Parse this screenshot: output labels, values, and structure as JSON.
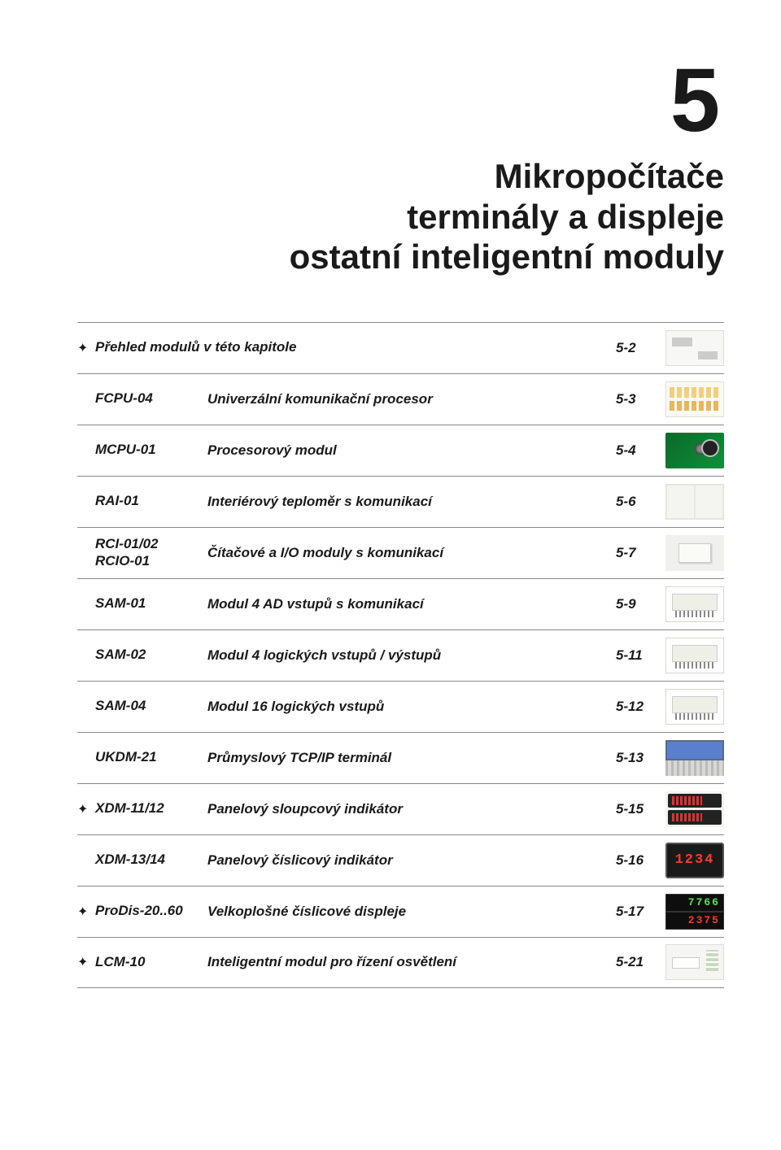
{
  "chapter_number": "5",
  "subtitle_line1": "Mikropočítače",
  "subtitle_line2": "terminály a displeje",
  "subtitle_line3": "ostatní inteligentní moduly",
  "heading_row": {
    "has_star": true,
    "model": "Přehled modulů v této kapitole",
    "description": "",
    "page": "5-2",
    "thumb_type": "diagram"
  },
  "rows": [
    {
      "has_star": false,
      "model": "FCPU-04",
      "description": "Univerzální komunikační procesor",
      "page": "5-3",
      "thumb_type": "chart"
    },
    {
      "has_star": false,
      "model": "MCPU-01",
      "description": "Procesorový modul",
      "page": "5-4",
      "thumb_type": "pcb"
    },
    {
      "has_star": false,
      "model": "RAI-01",
      "description": "Interiérový teploměr s komunikací",
      "page": "5-6",
      "thumb_type": "switch"
    },
    {
      "has_star": false,
      "model": "RCI-01/02\nRCIO-01",
      "description": "Čítačové a I/O moduly s komunikací",
      "page": "5-7",
      "thumb_type": "box"
    },
    {
      "has_star": false,
      "model": "SAM-01",
      "description": "Modul 4 AD vstupů s komunikací",
      "page": "5-9",
      "thumb_type": "module"
    },
    {
      "has_star": false,
      "model": "SAM-02",
      "description": "Modul 4 logických vstupů / výstupů",
      "page": "5-11",
      "thumb_type": "module"
    },
    {
      "has_star": false,
      "model": "SAM-04",
      "description": "Modul 16 logických vstupů",
      "page": "5-12",
      "thumb_type": "module"
    },
    {
      "has_star": false,
      "model": "UKDM-21",
      "description": "Průmyslový TCP/IP terminál",
      "page": "5-13",
      "thumb_type": "terminal"
    },
    {
      "has_star": true,
      "model": "XDM-11/12",
      "description": "Panelový sloupcový indikátor",
      "page": "5-15",
      "thumb_type": "bar"
    },
    {
      "has_star": false,
      "model": "XDM-13/14",
      "description": "Panelový číslicový indikátor",
      "page": "5-16",
      "thumb_type": "digit",
      "digit_text": "1234"
    },
    {
      "has_star": true,
      "model": "ProDis-20..60",
      "description": "Velkoplošné číslicové displeje",
      "page": "5-17",
      "thumb_type": "led",
      "led_text1": "7766",
      "led_text2": "2375",
      "led_color1": "#5fe05a",
      "led_color2": "#ff3a2a"
    },
    {
      "has_star": true,
      "model": "LCM-10",
      "description": "Inteligentní modul pro řízení osvětlení",
      "page": "5-21",
      "thumb_type": "pale"
    }
  ],
  "star_glyph": "✦",
  "colors": {
    "text": "#1a1a1a",
    "rule": "#888888",
    "background": "#ffffff"
  },
  "typography": {
    "big_number_fontsize": 110,
    "subtitle_fontsize": 42,
    "row_fontsize": 17
  }
}
